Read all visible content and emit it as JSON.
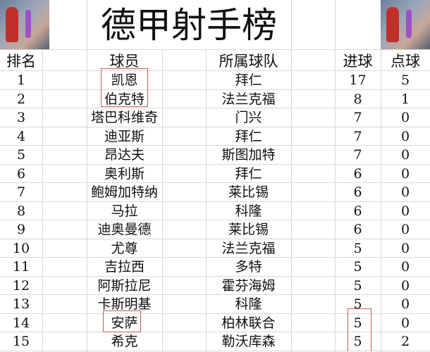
{
  "title": "德甲射手榜",
  "headers": {
    "rank": "排名",
    "player": "球员",
    "team": "所属球队",
    "goals": "进球",
    "penalties": "点球"
  },
  "rows": [
    {
      "rank": "1",
      "player": "凯恩",
      "team": "拜仁",
      "goals": "17",
      "penalties": "5"
    },
    {
      "rank": "2",
      "player": "伯克特",
      "team": "法兰克福",
      "goals": "8",
      "penalties": "1"
    },
    {
      "rank": "3",
      "player": "塔巴科维奇",
      "team": "门兴",
      "goals": "7",
      "penalties": "0"
    },
    {
      "rank": "4",
      "player": "迪亚斯",
      "team": "拜仁",
      "goals": "7",
      "penalties": "0"
    },
    {
      "rank": "5",
      "player": "昂达夫",
      "team": "斯图加特",
      "goals": "7",
      "penalties": "0"
    },
    {
      "rank": "6",
      "player": "奥利斯",
      "team": "拜仁",
      "goals": "6",
      "penalties": "0"
    },
    {
      "rank": "7",
      "player": "鲍姆加特纳",
      "team": "莱比锡",
      "goals": "6",
      "penalties": "0"
    },
    {
      "rank": "8",
      "player": "马拉",
      "team": "科隆",
      "goals": "6",
      "penalties": "0"
    },
    {
      "rank": "9",
      "player": "迪奥曼德",
      "team": "莱比锡",
      "goals": "6",
      "penalties": "0"
    },
    {
      "rank": "10",
      "player": "尤尊",
      "team": "法兰克福",
      "goals": "5",
      "penalties": "0"
    },
    {
      "rank": "11",
      "player": "吉拉西",
      "team": "多特",
      "goals": "5",
      "penalties": "0"
    },
    {
      "rank": "12",
      "player": "阿斯拉尼",
      "team": "霍芬海姆",
      "goals": "5",
      "penalties": "0"
    },
    {
      "rank": "13",
      "player": "卡斯明基",
      "team": "科隆",
      "goals": "5",
      "penalties": "0"
    },
    {
      "rank": "14",
      "player": "安萨",
      "team": "柏林联合",
      "goals": "5",
      "penalties": "0"
    },
    {
      "rank": "15",
      "player": "希克",
      "team": "勒沃库森",
      "goals": "5",
      "penalties": "2"
    }
  ],
  "colors": {
    "grid": "#d8d8d8",
    "highlight_box": "#c06060"
  }
}
